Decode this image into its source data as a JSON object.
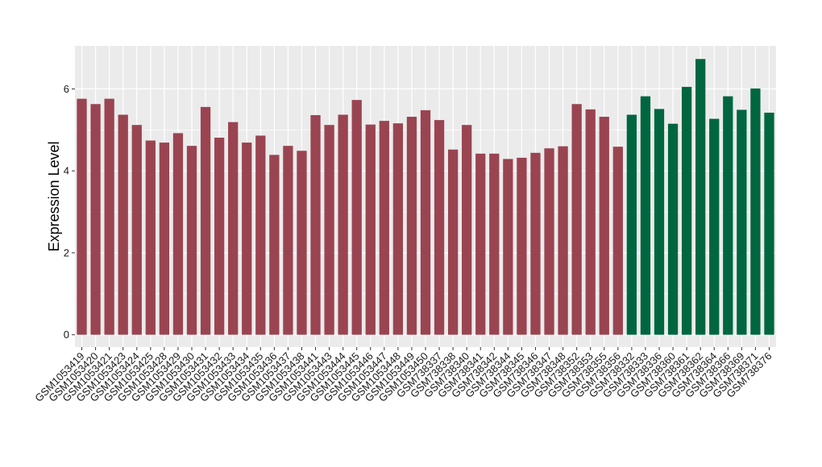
{
  "chart_data": {
    "type": "bar",
    "ylabel": "Expression Level",
    "xlabel": "",
    "ylim": [
      -0.3,
      7.05
    ],
    "yticks": [
      0,
      2,
      4,
      6
    ],
    "grid": true,
    "legend": "none",
    "colors": {
      "group1": "#9a4451",
      "group2": "#006640",
      "panel": "#ebebeb",
      "gridline": "#ffffff"
    },
    "categories": [
      "GSM1053419",
      "GSM1053420",
      "GSM1053421",
      "GSM1053423",
      "GSM1053424",
      "GSM1053425",
      "GSM1053428",
      "GSM1053429",
      "GSM1053430",
      "GSM1053431",
      "GSM1053432",
      "GSM1053433",
      "GSM1053434",
      "GSM1053435",
      "GSM1053436",
      "GSM1053437",
      "GSM1053438",
      "GSM1053441",
      "GSM1053443",
      "GSM1053444",
      "GSM1053445",
      "GSM1053446",
      "GSM1053447",
      "GSM1053448",
      "GSM1053449",
      "GSM1053450",
      "GSM738337",
      "GSM738338",
      "GSM738340",
      "GSM738341",
      "GSM738342",
      "GSM738344",
      "GSM738345",
      "GSM738346",
      "GSM738347",
      "GSM738348",
      "GSM738352",
      "GSM738353",
      "GSM738355",
      "GSM738356",
      "GSM738332",
      "GSM738333",
      "GSM738336",
      "GSM738360",
      "GSM738361",
      "GSM738362",
      "GSM738364",
      "GSM738366",
      "GSM738369",
      "GSM738371",
      "GSM738376"
    ],
    "values": [
      5.76,
      5.63,
      5.76,
      5.37,
      5.12,
      4.74,
      4.69,
      4.92,
      4.61,
      5.56,
      4.81,
      5.19,
      4.69,
      4.86,
      4.39,
      4.61,
      4.49,
      5.36,
      5.12,
      5.37,
      5.73,
      5.13,
      5.22,
      5.16,
      5.32,
      5.48,
      5.24,
      4.52,
      5.12,
      4.42,
      4.42,
      4.29,
      4.32,
      4.44,
      4.55,
      4.6,
      5.63,
      5.5,
      5.32,
      4.59,
      5.37,
      5.82,
      5.51,
      5.15,
      6.05,
      6.73,
      5.27,
      5.82,
      5.49,
      6.01,
      5.42
    ],
    "groups": [
      1,
      1,
      1,
      1,
      1,
      1,
      1,
      1,
      1,
      1,
      1,
      1,
      1,
      1,
      1,
      1,
      1,
      1,
      1,
      1,
      1,
      1,
      1,
      1,
      1,
      1,
      1,
      1,
      1,
      1,
      1,
      1,
      1,
      1,
      1,
      1,
      1,
      1,
      1,
      1,
      2,
      2,
      2,
      2,
      2,
      2,
      2,
      2,
      2,
      2,
      2
    ]
  }
}
